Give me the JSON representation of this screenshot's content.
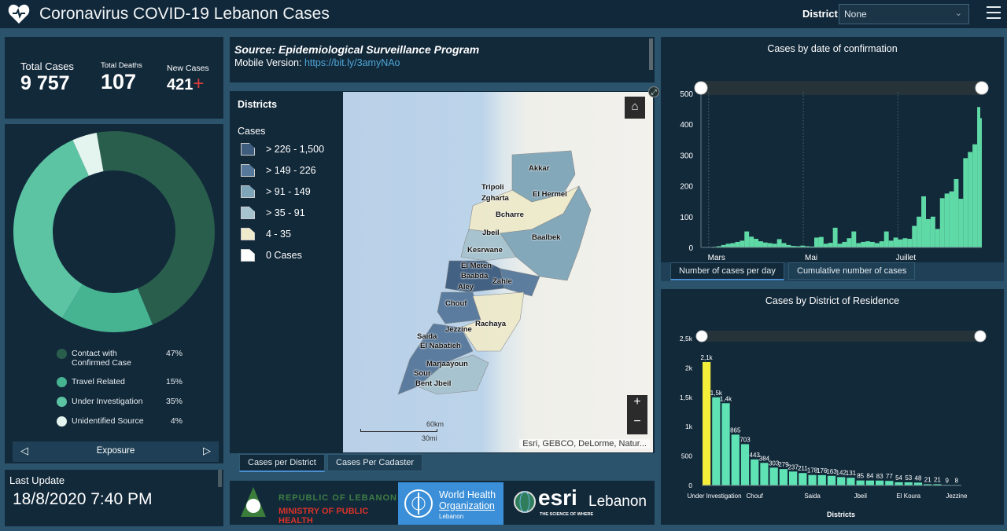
{
  "header": {
    "title": "Coronavirus COVID-19 Lebanon Cases",
    "district_label": "District",
    "district_value": "None"
  },
  "kpis": {
    "total_cases_label": "Total Cases",
    "total_cases": "9 757",
    "total_deaths_label": "Total Deaths",
    "total_deaths": "107",
    "new_cases_label": "New Cases",
    "new_cases": "421",
    "new_cases_icon": "plus-icon"
  },
  "exposure": {
    "title": "Exposure",
    "items": [
      {
        "label": "Contact with Confirmed Case",
        "pct": "47%",
        "value": 47,
        "color": "#2a5e4c"
      },
      {
        "label": "Travel Related",
        "pct": "15%",
        "value": 15,
        "color": "#46b391"
      },
      {
        "label": "Under Investigation",
        "pct": "35%",
        "value": 35,
        "color": "#5cc4a3"
      },
      {
        "label": "Unidentified Source",
        "pct": "4%",
        "value": 4,
        "color": "#e4f4ee"
      }
    ]
  },
  "last_update": {
    "label": "Last Update",
    "value": "18/8/2020 7:40 PM"
  },
  "source": {
    "title": "Source: Epidemiological Surveillance Program",
    "mobile_label": "Mobile Version: ",
    "mobile_link": "https://bit.ly/3amyNAo"
  },
  "map": {
    "legend_title": "Districts",
    "legend_sub": "Cases",
    "classes": [
      {
        "label": "> 226 - 1,500",
        "color": "#3d5c7e"
      },
      {
        "label": "> 149 - 226",
        "color": "#56789a"
      },
      {
        "label": "> 91 - 149",
        "color": "#7ea5b8"
      },
      {
        "label": "> 35 - 91",
        "color": "#a6c3ce"
      },
      {
        "label": "4 - 35",
        "color": "#eeeacb"
      },
      {
        "label": "0 Cases",
        "color": "#ffffff"
      }
    ],
    "districts": [
      "Akkar",
      "Tripoli",
      "Zgharta",
      "El Hermel",
      "Bcharre",
      "Jbeil",
      "Baalbek",
      "Kesrwane",
      "El Meten",
      "Baabda",
      "Zahle",
      "Aley",
      "Chouf",
      "Rachaya",
      "Jezzine",
      "Saida",
      "El Nabatieh",
      "Marjaayoun",
      "Sour",
      "Bent Jbeil"
    ],
    "scale_km": "60km",
    "scale_mi": "30mi",
    "attribution": "Esri, GEBCO, DeLorme, Natur...",
    "zoom_in": "+",
    "zoom_out": "−",
    "tabs": [
      "Cases per District",
      "Cases Per Cadaster"
    ]
  },
  "logos": {
    "moph_line1": "REPUBLIC OF LEBANON",
    "moph_line2": "MINISTRY OF PUBLIC HEALTH",
    "who_line1": "World Health",
    "who_line2": "Organization",
    "who_line3": "Lebanon",
    "esri": "esri",
    "esri_country": "Lebanon",
    "esri_tag": "THE SCIENCE OF WHERE"
  },
  "chart_data": [
    {
      "type": "bar",
      "title": "Cases by  date of confirmation",
      "xlabel": "",
      "ylabel": "",
      "ylim": [
        0,
        500
      ],
      "yticks": [
        0,
        100,
        200,
        300,
        400,
        500
      ],
      "xticks": [
        {
          "date": "2020-03-01",
          "label": "Mars"
        },
        {
          "date": "2020-05-01",
          "label": "Mai"
        },
        {
          "date": "2020-07-01",
          "label": "Juillet"
        }
      ],
      "color": "#5fd9a6",
      "points": [
        [
          "2020-02-21",
          1
        ],
        [
          "2020-02-24",
          1
        ],
        [
          "2020-02-27",
          2
        ],
        [
          "2020-03-01",
          4
        ],
        [
          "2020-03-04",
          8
        ],
        [
          "2020-03-07",
          12
        ],
        [
          "2020-03-10",
          14
        ],
        [
          "2020-03-13",
          18
        ],
        [
          "2020-03-16",
          22
        ],
        [
          "2020-03-19",
          52
        ],
        [
          "2020-03-22",
          35
        ],
        [
          "2020-03-25",
          28
        ],
        [
          "2020-03-28",
          20
        ],
        [
          "2020-03-31",
          16
        ],
        [
          "2020-04-03",
          14
        ],
        [
          "2020-04-06",
          12
        ],
        [
          "2020-04-09",
          27
        ],
        [
          "2020-04-12",
          14
        ],
        [
          "2020-04-15",
          8
        ],
        [
          "2020-04-18",
          5
        ],
        [
          "2020-04-21",
          4
        ],
        [
          "2020-04-24",
          6
        ],
        [
          "2020-04-27",
          4
        ],
        [
          "2020-04-30",
          3
        ],
        [
          "2020-05-03",
          32
        ],
        [
          "2020-05-06",
          34
        ],
        [
          "2020-05-09",
          12
        ],
        [
          "2020-05-12",
          15
        ],
        [
          "2020-05-15",
          64
        ],
        [
          "2020-05-18",
          12
        ],
        [
          "2020-05-21",
          18
        ],
        [
          "2020-05-24",
          30
        ],
        [
          "2020-05-27",
          52
        ],
        [
          "2020-05-30",
          14
        ],
        [
          "2020-06-02",
          18
        ],
        [
          "2020-06-05",
          20
        ],
        [
          "2020-06-08",
          18
        ],
        [
          "2020-06-11",
          14
        ],
        [
          "2020-06-14",
          20
        ],
        [
          "2020-06-17",
          52
        ],
        [
          "2020-06-20",
          22
        ],
        [
          "2020-06-23",
          32
        ],
        [
          "2020-06-26",
          26
        ],
        [
          "2020-06-29",
          30
        ],
        [
          "2020-07-02",
          28
        ],
        [
          "2020-07-05",
          70
        ],
        [
          "2020-07-08",
          100
        ],
        [
          "2020-07-11",
          166
        ],
        [
          "2020-07-14",
          92
        ],
        [
          "2020-07-17",
          100
        ],
        [
          "2020-07-20",
          60
        ],
        [
          "2020-07-23",
          160
        ],
        [
          "2020-07-26",
          175
        ],
        [
          "2020-07-29",
          182
        ],
        [
          "2020-08-01",
          222
        ],
        [
          "2020-08-04",
          158
        ],
        [
          "2020-08-07",
          290
        ],
        [
          "2020-08-10",
          310
        ],
        [
          "2020-08-13",
          335
        ],
        [
          "2020-08-16",
          456
        ],
        [
          "2020-08-18",
          420
        ]
      ],
      "tabs": [
        "Number of cases per day",
        "Cumulative number of cases"
      ]
    },
    {
      "type": "bar",
      "title": "Cases by District of Residence",
      "xlabel": "Districts",
      "ylabel": "",
      "ylim": [
        0,
        2500
      ],
      "yticks": [
        {
          "v": 0,
          "label": "0"
        },
        {
          "v": 500,
          "label": "500"
        },
        {
          "v": 1000,
          "label": "1k"
        },
        {
          "v": 1500,
          "label": "1,5k"
        },
        {
          "v": 2000,
          "label": "2k"
        },
        {
          "v": 2500,
          "label": "2,5k"
        }
      ],
      "categories": [
        "Under Investigation",
        "",
        "",
        "",
        "",
        "Chouf",
        "",
        "",
        "",
        "",
        "",
        "Saida",
        "",
        "",
        "",
        "",
        "Jbeil",
        "",
        "",
        "",
        "",
        "El Koura",
        "",
        "",
        "",
        "",
        "Jezzine"
      ],
      "values": [
        2100,
        1500,
        1400,
        865,
        703,
        443,
        384,
        303,
        279,
        237,
        211,
        178,
        176,
        163,
        142,
        131,
        85,
        84,
        83,
        77,
        54,
        53,
        48,
        21,
        21,
        9,
        8
      ],
      "labels": [
        "2,1k",
        "1,5k",
        "1,4k",
        "865",
        "703",
        "443",
        "384",
        "303",
        "279",
        "237",
        "211",
        "178",
        "176",
        "163",
        "142",
        "131",
        "85",
        "84",
        "83",
        "77",
        "54",
        "53",
        "48",
        "21",
        "21",
        "9",
        "8"
      ],
      "colors": {
        "highlight": "#f5ef3a",
        "default": "#5fe3b4"
      }
    }
  ]
}
